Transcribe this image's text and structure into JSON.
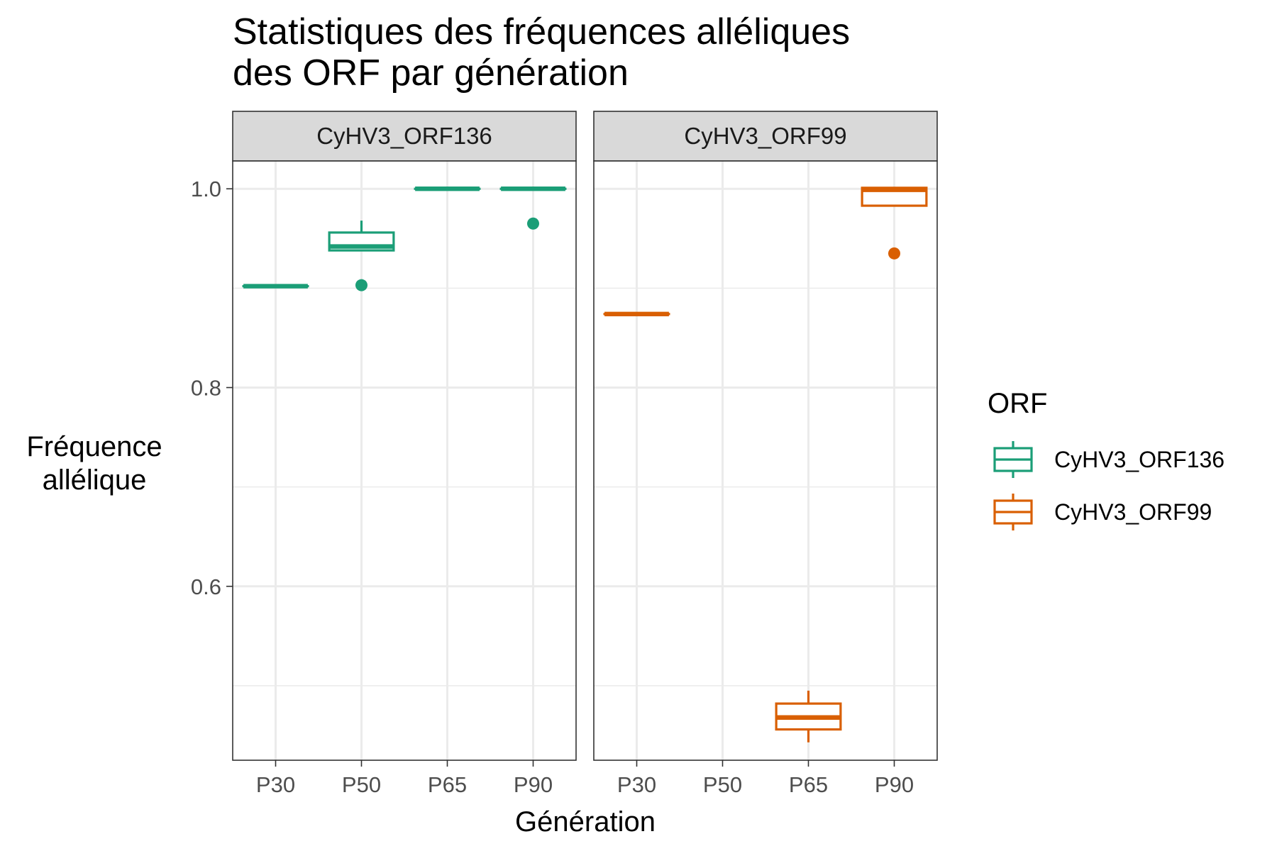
{
  "title_lines": [
    "Statistiques des fréquences alléliques",
    "des ORF par génération"
  ],
  "chart_data": {
    "type": "boxplot",
    "title": "Statistiques des fréquences alléliques des ORF par génération",
    "xlabel": "Génération",
    "ylabel_lines": [
      "Fréquence",
      "allélique"
    ],
    "categories": [
      "P30",
      "P50",
      "P65",
      "P90"
    ],
    "ylim": [
      0.425,
      1.028
    ],
    "y_ticks": [
      0.6,
      0.8,
      1.0
    ],
    "y_tick_labels": [
      "0.6",
      "0.8",
      "1.0"
    ],
    "y_minor_ticks": [
      0.5,
      0.7,
      0.9
    ],
    "grid": true,
    "legend": {
      "title": "ORF",
      "position": "right",
      "entries": [
        {
          "name": "CyHV3_ORF136",
          "color": "#1b9e77"
        },
        {
          "name": "CyHV3_ORF99",
          "color": "#d95f02"
        }
      ]
    },
    "panels": [
      {
        "name": "CyHV3_ORF136",
        "color": "#1b9e77",
        "boxes": [
          {
            "x": "P30",
            "min": 0.902,
            "q1": 0.902,
            "median": 0.902,
            "q3": 0.902,
            "max": 0.902,
            "outliers": []
          },
          {
            "x": "P50",
            "min": 0.938,
            "q1": 0.938,
            "median": 0.942,
            "q3": 0.956,
            "max": 0.968,
            "outliers": [
              0.903
            ]
          },
          {
            "x": "P65",
            "min": 1.0,
            "q1": 1.0,
            "median": 1.0,
            "q3": 1.0,
            "max": 1.0,
            "outliers": []
          },
          {
            "x": "P90",
            "min": 1.0,
            "q1": 1.0,
            "median": 1.0,
            "q3": 1.0,
            "max": 1.0,
            "outliers": [
              0.965
            ]
          }
        ]
      },
      {
        "name": "CyHV3_ORF99",
        "color": "#d95f02",
        "boxes": [
          {
            "x": "P30",
            "min": 0.874,
            "q1": 0.874,
            "median": 0.874,
            "q3": 0.874,
            "max": 0.874,
            "outliers": []
          },
          {
            "x": "P65",
            "min": 0.443,
            "q1": 0.456,
            "median": 0.468,
            "q3": 0.482,
            "max": 0.495,
            "outliers": []
          },
          {
            "x": "P90",
            "min": 0.983,
            "q1": 0.983,
            "median": 0.999,
            "q3": 1.001,
            "max": 1.001,
            "outliers": [
              0.935
            ]
          }
        ]
      }
    ]
  }
}
